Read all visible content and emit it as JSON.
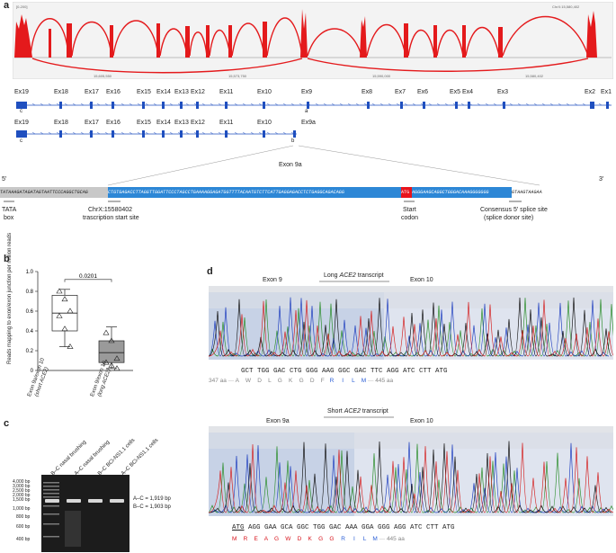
{
  "panels": {
    "a": "a",
    "b": "b",
    "c": "c",
    "d": "d"
  },
  "panel_a": {
    "coverage_left_tick": "[0-200]",
    "coverage_right_tick": "ChrX:15,580,402",
    "coverage_axis": [
      "15,605,550",
      "15,573,750",
      "15,590,000",
      "15,580,402"
    ],
    "track1_exons": [
      "Ex19",
      "Ex18",
      "Ex17",
      "Ex16",
      "Ex15",
      "Ex14",
      "Ex13",
      "Ex12",
      "Ex11",
      "Ex10",
      "Ex9",
      "Ex8",
      "Ex7",
      "Ex6",
      "Ex5",
      "Ex4",
      "Ex3",
      "Ex2",
      "Ex1"
    ],
    "track2_exons": [
      "Ex19",
      "Ex18",
      "Ex17",
      "Ex16",
      "Ex15",
      "Ex14",
      "Ex13",
      "Ex12",
      "Ex11",
      "Ex10",
      "Ex9a"
    ],
    "primer_c1": "c",
    "primer_a": "a",
    "primer_c2": "c",
    "primer_b": "b",
    "zoom_title": "Exon 9a",
    "five_prime": "5′",
    "three_prime": "3′",
    "seq_grey_left": "TATAAAGATAGATAGTAATTCCCAGGCTGCAG",
    "seq_blue1": "CTGTGAGACCTTAGGTTGGATTCCCTAGCCTGAAAAGGAGATGGTTTTACAATGTCTTCATTGAGGAGACCTCTGAGGCAGACAGG",
    "seq_red": "ATG",
    "seq_blue2": "AGGGAAGCAGGCTGGGACAAAGGGGGGG",
    "seq_grey_right": "GTAAGTAAGAA",
    "ann_tata": "TATA box",
    "ann_tata_1": "TATA",
    "ann_tata_2": "box",
    "ann_tss_1": "ChrX:15580402",
    "ann_tss_2": "trascription start site",
    "ann_start_1": "Start",
    "ann_start_2": "codon",
    "ann_splice_1": "Consensus 5′ splice site",
    "ann_splice_2": "(splice donor site)"
  },
  "panel_b": {
    "ylabel": "Reads mapping to exon/exon junction per million reads",
    "yticks": [
      "0",
      "0.2",
      "0.4",
      "0.6",
      "0.8",
      "1.0"
    ],
    "pvalue": "0.0201",
    "xlabel1_line1": "Exon 9a/exon 10",
    "xlabel1_line2": "(short ACE2)",
    "xlabel2_line1": "Exon 9/exon 10",
    "xlabel2_line2": "(long ACE2)"
  },
  "chart_data": {
    "type": "box",
    "categories": [
      "Exon 9a/exon 10 (short ACE2)",
      "Exon 9/exon 10 (long ACE2)"
    ],
    "ylim": [
      0,
      1.0
    ],
    "boxes": [
      {
        "min": 0.24,
        "q1": 0.4,
        "median": 0.58,
        "q3": 0.76,
        "max": 0.82,
        "points": [
          0.8,
          0.72,
          0.6,
          0.55,
          0.42,
          0.24
        ]
      },
      {
        "min": 0.02,
        "q1": 0.08,
        "median": 0.18,
        "q3": 0.3,
        "max": 0.44,
        "points": [
          0.38,
          0.3,
          0.12,
          0.08,
          0.05,
          0.02
        ]
      }
    ],
    "pvalue": "0.0201"
  },
  "panel_c": {
    "lanes": [
      "B–C nasal brushing",
      "A–C nasal brushing",
      "B–C BCi-NS1.1 cells",
      "A–C BCi-NS1.1 cells"
    ],
    "ladder": [
      "4,000 bp",
      "3,000 bp",
      "2,500 bp",
      "2,000 bp",
      "1,500 bp",
      "1,000 bp",
      "800 bp",
      "600 bp",
      "400 bp"
    ],
    "band1": "A–C = 1,919 bp",
    "band2": "B–C = 1,903 bp"
  },
  "panel_d": {
    "top_exon_left": "Exon 9",
    "top_title_pre": "Long ",
    "top_title_em": "ACE2",
    "top_title_post": " transcript",
    "top_exon_right": "Exon 10",
    "top_seq": "GCT TGG GAC CTG GGG AAG GGC GAC TTC AGG ATC CTT ATG",
    "top_aa_start": "347 aa",
    "top_aa_grey": "A    W    D    L    G    K    G    D    F",
    "top_aa_blue": "R     I     L    M",
    "top_aa_end": "445 aa",
    "bot_exon_left": "Exon 9a",
    "bot_title_pre": "Short ",
    "bot_title_em": "ACE2",
    "bot_title_post": " transcript",
    "bot_exon_right": "Exon 10",
    "bot_seq_atg": "ATG",
    "bot_seq_rest": " AGG GAA GCA GGC TGG GAC AAA GGA GGG AGG ATC CTT ATG",
    "bot_aa_red": "M    R    E    A    G    W    D    K    G    G",
    "bot_aa_blue": "R     I     L    M",
    "bot_aa_end": "445 aa"
  }
}
